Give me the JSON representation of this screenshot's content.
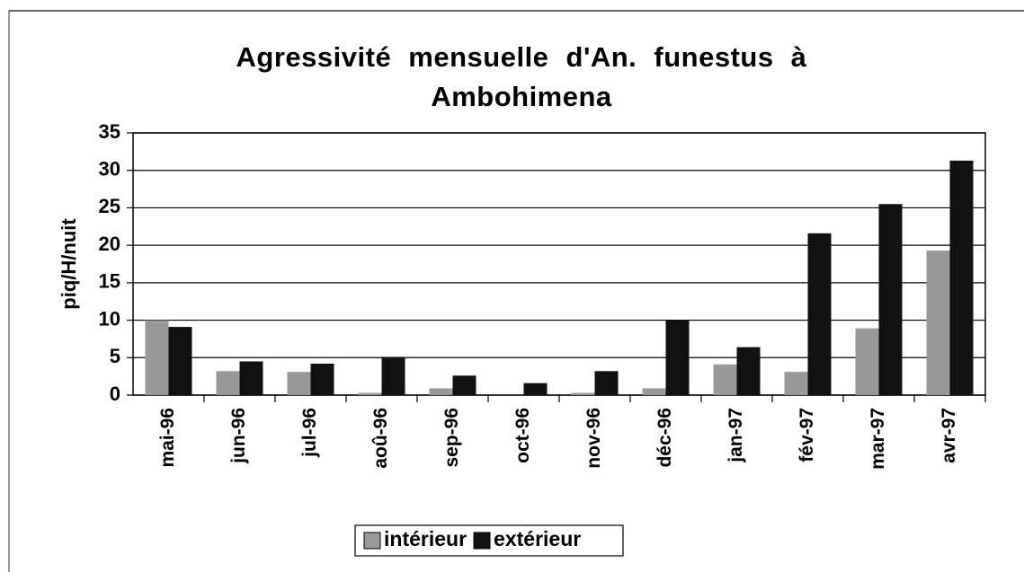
{
  "chart_data": {
    "type": "bar",
    "title": "Agressivité mensuelle d'An. funestus à Ambohimena",
    "y_label": "piq/H/nuit",
    "categories": [
      "mai-96",
      "jun-96",
      "jul-96",
      "aoû-96",
      "sep-96",
      "oct-96",
      "nov-96",
      "déc-96",
      "jan-97",
      "fév-97",
      "mar-97",
      "avr-97"
    ],
    "series": [
      {
        "name": "intérieur",
        "color": "#999999",
        "values": [
          10,
          3.2,
          3.1,
          0.3,
          0.9,
          0,
          0.3,
          0.9,
          4.1,
          3.1,
          8.9,
          19.3
        ]
      },
      {
        "name": "extérieur",
        "color": "#111111",
        "values": [
          9.1,
          4.5,
          4.2,
          5.1,
          2.6,
          1.6,
          3.2,
          10,
          6.4,
          21.6,
          25.5,
          31.3
        ]
      }
    ],
    "ylim": [
      0,
      35
    ],
    "yticks": [
      0,
      5,
      10,
      15,
      20,
      25,
      30,
      35
    ],
    "grid": true,
    "legend": "bottom"
  }
}
